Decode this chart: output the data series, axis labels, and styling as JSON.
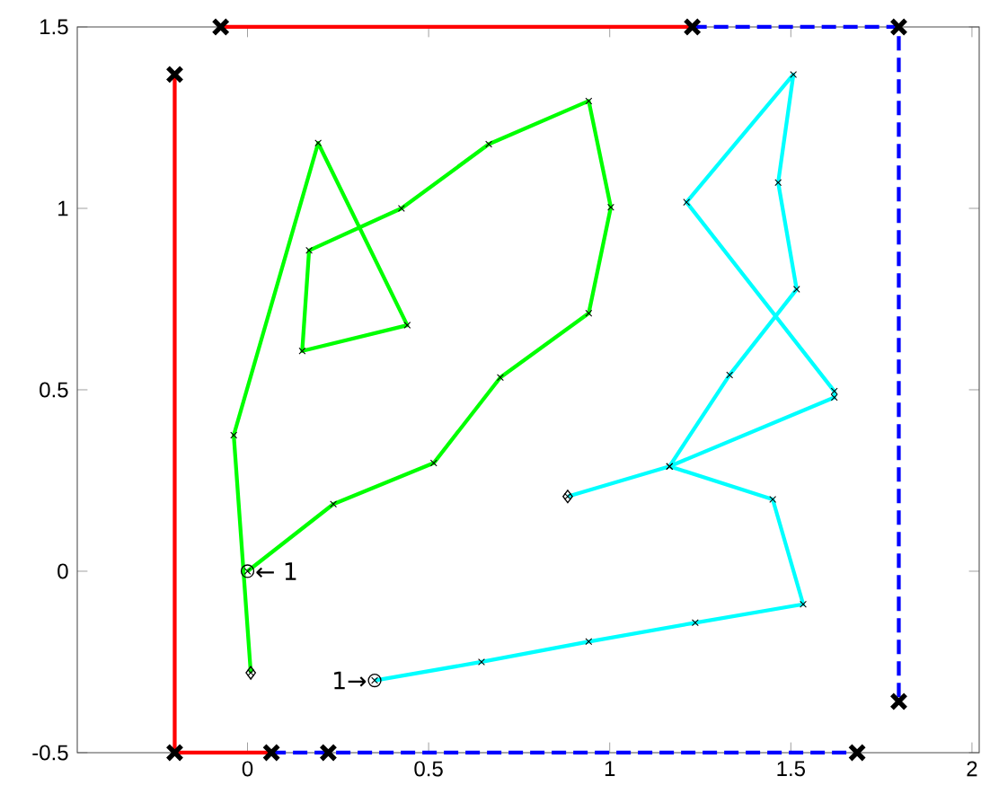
{
  "chart_data": {
    "type": "line",
    "xlim": [
      -0.47,
      2.02
    ],
    "ylim": [
      -0.5,
      1.5
    ],
    "xticks": [
      0,
      0.5,
      1,
      1.5,
      2
    ],
    "yticks": [
      -0.5,
      0,
      0.5,
      1,
      1.5
    ],
    "grid": false,
    "series": [
      {
        "color": "#00ff00",
        "marker": "cross",
        "line_style": "solid",
        "x": [
          0,
          0.237,
          0.514,
          0.698,
          0.942,
          1.003,
          0.942,
          0.666,
          0.425,
          0.17,
          0.151,
          0.441,
          0.195,
          -0.038,
          0.009
        ],
        "values": [
          0,
          0.185,
          0.298,
          0.534,
          0.711,
          1.003,
          1.296,
          1.177,
          1.0,
          0.884,
          0.607,
          0.678,
          1.18,
          0.375,
          -0.28
        ]
      },
      {
        "color": "#00ffff",
        "marker": "cross",
        "line_style": "solid",
        "x": [
          0.351,
          0.646,
          0.942,
          1.236,
          1.534,
          1.45,
          1.165,
          1.62,
          1.62,
          1.212,
          1.507,
          1.465,
          1.516,
          1.331,
          1.165,
          0.884
        ],
        "values": [
          -0.301,
          -0.25,
          -0.194,
          -0.142,
          -0.091,
          0.198,
          0.289,
          0.479,
          0.496,
          1.017,
          1.369,
          1.071,
          0.777,
          0.541,
          0.289,
          0.206
        ]
      },
      {
        "color": "#ff0000",
        "marker": "none",
        "line_style": "solid",
        "x": [
          -0.201,
          -0.201,
          0.066
        ],
        "values": [
          1.369,
          -0.5,
          -0.5
        ]
      },
      {
        "color": "#ff0000",
        "marker": "none",
        "line_style": "solid",
        "x": [
          -0.074,
          1.228
        ],
        "values": [
          1.5,
          1.5
        ]
      },
      {
        "color": "#0000ff",
        "marker": "none",
        "line_style": "dashed",
        "x": [
          1.228,
          1.798,
          1.798
        ],
        "values": [
          1.5,
          1.5,
          -0.359
        ]
      },
      {
        "color": "#0000ff",
        "marker": "none",
        "line_style": "dashed",
        "x": [
          0.066,
          1.683
        ],
        "values": [
          -0.5,
          -0.5
        ]
      },
      {
        "type": "scatter",
        "color": "#000000",
        "marker": "cross",
        "x": [
          -0.201,
          -0.201,
          0.066,
          0.223,
          -0.074,
          1.228,
          1.798,
          1.798,
          1.683
        ],
        "values": [
          1.369,
          -0.5,
          -0.5,
          -0.5,
          1.5,
          1.5,
          1.5,
          -0.359,
          -0.5
        ]
      },
      {
        "type": "scatter",
        "color": "#000000",
        "marker": "circle",
        "x": [
          0,
          0.351
        ],
        "values": [
          0,
          -0.301
        ]
      },
      {
        "type": "scatter",
        "color": "#000000",
        "marker": "diamond",
        "x": [
          0.009,
          0.884
        ],
        "values": [
          -0.28,
          0.206
        ]
      }
    ],
    "annotations": [
      {
        "text": "← 1",
        "x": 0,
        "y": 0
      },
      {
        "text": "1→",
        "x": 0.351,
        "y": -0.301
      }
    ]
  }
}
